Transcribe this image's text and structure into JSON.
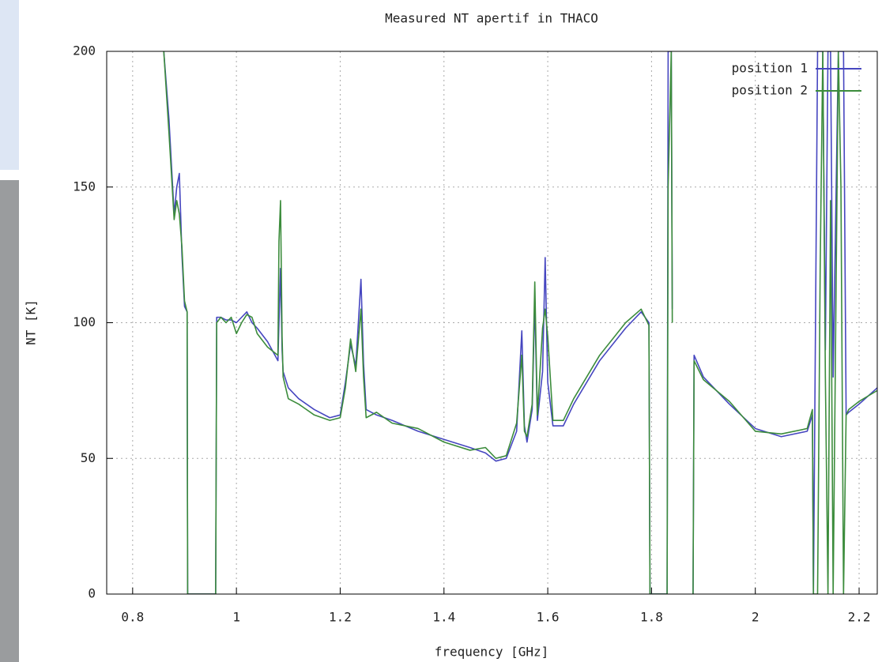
{
  "chart_data": {
    "type": "line",
    "title": "Measured NT apertif in THACO",
    "x_label": "frequency [GHz]",
    "y_label": "NT [K]",
    "x": [
      0.86,
      0.87,
      0.88,
      0.885,
      0.89,
      0.895,
      0.9,
      0.905,
      0.906,
      0.96,
      0.962,
      0.97,
      0.98,
      0.99,
      1.0,
      1.01,
      1.02,
      1.03,
      1.04,
      1.06,
      1.08,
      1.082,
      1.085,
      1.088,
      1.09,
      1.1,
      1.12,
      1.15,
      1.18,
      1.2,
      1.21,
      1.22,
      1.23,
      1.24,
      1.245,
      1.25,
      1.27,
      1.3,
      1.35,
      1.4,
      1.45,
      1.48,
      1.5,
      1.52,
      1.54,
      1.55,
      1.555,
      1.56,
      1.57,
      1.575,
      1.58,
      1.59,
      1.595,
      1.6,
      1.61,
      1.63,
      1.65,
      1.7,
      1.75,
      1.78,
      1.795,
      1.797,
      1.83,
      1.832,
      1.838,
      1.84,
      1.842,
      1.878,
      1.88,
      1.882,
      1.9,
      1.95,
      2.0,
      2.05,
      2.1,
      2.11,
      2.112,
      2.12,
      2.125,
      2.13,
      2.135,
      2.14,
      2.145,
      2.15,
      2.16,
      2.165,
      2.17,
      2.175,
      2.18,
      2.2,
      2.235
    ],
    "series": [
      {
        "name": "position 1",
        "color": "#4646c0",
        "values": [
          200,
          175,
          140,
          150,
          155,
          125,
          106,
          104,
          0,
          0,
          102,
          102,
          101,
          101,
          100,
          102,
          104,
          100,
          98,
          93,
          86,
          100,
          120,
          90,
          82,
          76,
          72,
          68,
          65,
          66,
          78,
          92,
          84,
          116,
          85,
          68,
          66,
          64,
          60,
          57,
          54,
          52,
          49,
          50,
          60,
          97,
          62,
          56,
          68,
          108,
          64,
          82,
          124,
          78,
          62,
          62,
          70,
          86,
          98,
          104,
          100,
          0,
          0,
          200,
          200,
          105,
          null,
          null,
          0,
          88,
          80,
          70,
          61,
          58,
          60,
          66,
          0,
          200,
          200,
          200,
          90,
          200,
          200,
          80,
          200,
          200,
          200,
          66,
          67,
          70,
          76
        ]
      },
      {
        "name": "position 2",
        "color": "#3c8c3c",
        "values": [
          200,
          170,
          138,
          145,
          140,
          128,
          108,
          104,
          0,
          0,
          100,
          102,
          100,
          102,
          96,
          100,
          103,
          102,
          96,
          91,
          88,
          130,
          145,
          95,
          80,
          72,
          70,
          66,
          64,
          65,
          76,
          94,
          82,
          105,
          80,
          65,
          67,
          63,
          61,
          56,
          53,
          54,
          50,
          51,
          63,
          88,
          60,
          58,
          70,
          115,
          66,
          98,
          105,
          95,
          64,
          64,
          72,
          88,
          100,
          105,
          99,
          0,
          0,
          150,
          200,
          100,
          null,
          null,
          0,
          86,
          79,
          71,
          60,
          59,
          61,
          68,
          0,
          0,
          120,
          200,
          80,
          0,
          145,
          0,
          200,
          150,
          0,
          66,
          68,
          71,
          75
        ]
      }
    ],
    "xlim": [
      0.75,
      2.235
    ],
    "ylim": [
      0,
      200
    ],
    "xticks": [
      0.8,
      1,
      1.2,
      1.4,
      1.6,
      1.8,
      2,
      2.2
    ],
    "yticks": [
      0,
      50,
      100,
      150,
      200
    ],
    "grid": true,
    "legend": "top-right"
  }
}
